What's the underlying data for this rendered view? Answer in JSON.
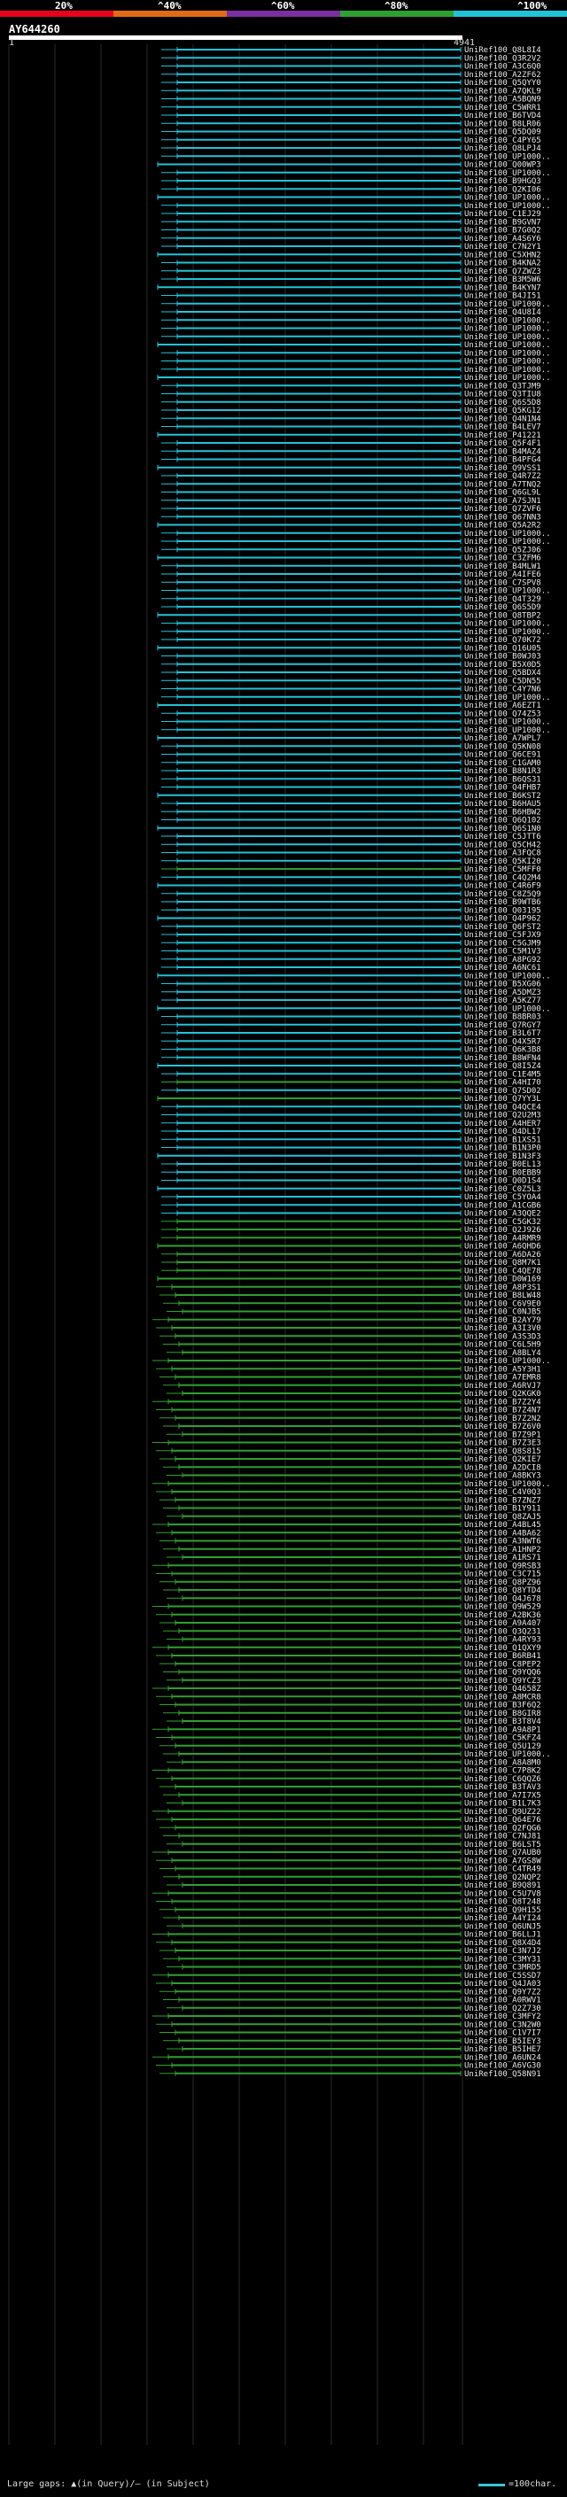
{
  "scale": {
    "labels": [
      "20%",
      "^40%",
      "^60%",
      "^80%",
      "^100%"
    ],
    "colors": [
      "#e8001c",
      "#e06a16",
      "#7a2fa0",
      "#2fa02f",
      "#22c3d9"
    ]
  },
  "query": {
    "name": "AY644260",
    "start_label": "1",
    "end_label": "4941"
  },
  "legend": {
    "gap_text": "Large gaps: ▲(in Query)/— (in Subject)",
    "scale_text": "=100char."
  },
  "hits": [
    "UniRef100_Q8L8I4",
    "UniRef100_Q3R2V2",
    "UniRef100_A3C6Q0",
    "UniRef100_A2ZF62",
    "UniRef100_Q5QYY0",
    "UniRef100_A7QKL9",
    "UniRef100_A5BQN9",
    "UniRef100_C5WRR1",
    "UniRef100_B6TVD4",
    "UniRef100_B8LR06",
    "UniRef100_Q5DQ09",
    "UniRef100_C4PY65",
    "UniRef100_Q8LPJ4",
    "UniRef100_UP1000..",
    "UniRef100_Q00WP3",
    "UniRef100_UP1000..",
    "UniRef100_B9HGQ3",
    "UniRef100_Q2KI06",
    "UniRef100_UP1000..",
    "UniRef100_UP1000..",
    "UniRef100_C1EJ29",
    "UniRef100_B9GVN7",
    "UniRef100_B7G0Q2",
    "UniRef100_A4S6Y6",
    "UniRef100_C7N2Y1",
    "UniRef100_C5XHN2",
    "UniRef100_B4KNA2",
    "UniRef100_Q7ZWZ3",
    "UniRef100_B3M5W6",
    "UniRef100_B4KYN7",
    "UniRef100_B4JI51",
    "UniRef100_UP1000..",
    "UniRef100_Q4U8I4",
    "UniRef100_UP1000..",
    "UniRef100_UP1000..",
    "UniRef100_UP1000..",
    "UniRef100_UP1000..",
    "UniRef100_UP1000..",
    "UniRef100_UP1000..",
    "UniRef100_UP1000..",
    "UniRef100_UP1000..",
    "UniRef100_Q3TJM9",
    "UniRef100_Q3TIU8",
    "UniRef100_Q6S5D8",
    "UniRef100_Q5KG12",
    "UniRef100_Q4N1N4",
    "UniRef100_B4LEV7",
    "UniRef100_P41221",
    "UniRef100_Q5F4F1",
    "UniRef100_B4MAZ4",
    "UniRef100_B4PFG4",
    "UniRef100_Q9VSS1",
    "UniRef100_Q4R7Z2",
    "UniRef100_A7TNQ2",
    "UniRef100_Q6GL9L",
    "UniRef100_A7SJN1",
    "UniRef100_Q7ZVF6",
    "UniRef100_Q67NN3",
    "UniRef100_Q5A2R2",
    "UniRef100_UP1000..",
    "UniRef100_UP1000..",
    "UniRef100_Q5ZJ06",
    "UniRef100_C3ZFM6",
    "UniRef100_B4MLW1",
    "UniRef100_A4IFE6",
    "UniRef100_C7SPV8",
    "UniRef100_UP1000..",
    "UniRef100_Q4T329",
    "UniRef100_Q6S5D9",
    "UniRef100_Q8TBP2",
    "UniRef100_UP1000..",
    "UniRef100_UP1000..",
    "UniRef100_Q70K72",
    "UniRef100_Q16U05",
    "UniRef100_B0WJ03",
    "UniRef100_B5X0D5",
    "UniRef100_Q5BDX4",
    "UniRef100_C5DN55",
    "UniRef100_C4Y7N6",
    "UniRef100_UP1000..",
    "UniRef100_A6EZT1",
    "UniRef100_Q74Z53",
    "UniRef100_UP1000..",
    "UniRef100_UP1000..",
    "UniRef100_A7WPL7",
    "UniRef100_Q5KN08",
    "UniRef100_Q6CE91",
    "UniRef100_C1GAM0",
    "UniRef100_B8N1R3",
    "UniRef100_B6QS31",
    "UniRef100_Q4FHB7",
    "UniRef100_B6KST2",
    "UniRef100_B6HAU5",
    "UniRef100_B6HBW2",
    "UniRef100_Q6Q102",
    "UniRef100_Q6S1N0",
    "UniRef100_C5JTT6",
    "UniRef100_Q5CH42",
    "UniRef100_A3FQC8",
    "UniRef100_Q5KI20",
    "UniRef100_C5MFF0",
    "UniRef100_C4Q2M4",
    "UniRef100_C4R6F9",
    "UniRef100_C8Z5Q9",
    "UniRef100_B9WTB6",
    "UniRef100_Q03195",
    "UniRef100_Q4P962",
    "UniRef100_Q6FST2",
    "UniRef100_C5FJX9",
    "UniRef100_C5GJM9",
    "UniRef100_C5M1V3",
    "UniRef100_A8PG92",
    "UniRef100_A6NC61",
    "UniRef100_UP1000..",
    "UniRef100_B5XG06",
    "UniRef100_A5DMZ3",
    "UniRef100_A5KZ77",
    "UniRef100_UP1000..",
    "UniRef100_B8BR03",
    "UniRef100_Q7RGY7",
    "UniRef100_B3L6T7",
    "UniRef100_Q4X5R7",
    "UniRef100_Q6K3B8",
    "UniRef100_B8WFN4",
    "UniRef100_Q8I5Z4",
    "UniRef100_C1E4M5",
    "UniRef100_A4HI70",
    "UniRef100_Q7SD02",
    "UniRef100_Q7YY3L",
    "UniRef100_Q4QCE4",
    "UniRef100_Q2U2M3",
    "UniRef100_A4HER7",
    "UniRef100_Q4DL17",
    "UniRef100_B1XS51",
    "UniRef100_B1N3P0",
    "UniRef100_B1N3F3",
    "UniRef100_B0EL13",
    "UniRef100_B0EBB9",
    "UniRef100_Q0D1S4",
    "UniRef100_C0Z5L3",
    "UniRef100_C5YOA4",
    "UniRef100_A1CGB6",
    "UniRef100_A3QQE2",
    "UniRef100_C5GK32",
    "UniRef100_Q2J926",
    "UniRef100_A4RMR9",
    "UniRef100_A6QHD6",
    "UniRef100_A6DA26",
    "UniRef100_Q8M7K1",
    "UniRef100_C4QE78",
    "UniRef100_D0W169",
    "UniRef100_A8P3S1",
    "UniRef100_B8LW48",
    "UniRef100_C6V9E0",
    "UniRef100_C0NJB5",
    "UniRef100_B2AY79",
    "UniRef100_A3I3V0",
    "UniRef100_A3S3D3",
    "UniRef100_C6L5H9",
    "UniRef100_A8BLY4",
    "UniRef100_UP1000..",
    "UniRef100_A5Y3H1",
    "UniRef100_A7EMR8",
    "UniRef100_A6RVJ7",
    "UniRef100_Q2KGK0",
    "UniRef100_B7Z2Y4",
    "UniRef100_B7Z4N7",
    "UniRef100_B7Z2N2",
    "UniRef100_B7Z6V0",
    "UniRef100_B7Z9P1",
    "UniRef100_B7Z3E3",
    "UniRef100_Q8S815",
    "UniRef100_Q2KIE7",
    "UniRef100_A2DCI8",
    "UniRef100_A8BKY3",
    "UniRef100_UP1000..",
    "UniRef100_C4V0Q3",
    "UniRef100_B7ZNZ7",
    "UniRef100_B1Y911",
    "UniRef100_Q8ZAJ5",
    "UniRef100_A4BL45",
    "UniRef100_A4BA62",
    "UniRef100_A3NWT6",
    "UniRef100_A1HNP2",
    "UniRef100_A1RS71",
    "UniRef100_Q9RSB3",
    "UniRef100_C3C715",
    "UniRef100_Q8PZ96",
    "UniRef100_Q8YTD4",
    "UniRef100_Q4J678",
    "UniRef100_Q9W529",
    "UniRef100_A2BK36",
    "UniRef100_A9A407",
    "UniRef100_Q3Q231",
    "UniRef100_A4RY93",
    "UniRef100_Q1QXY9",
    "UniRef100_B6RB41",
    "UniRef100_C8PEP2",
    "UniRef100_Q9YQQ6",
    "UniRef100_Q9YCZ3",
    "UniRef100_Q4658Z",
    "UniRef100_A8MCR8",
    "UniRef100_B3F6Q2",
    "UniRef100_B8GIR8",
    "UniRef100_B3T8V4",
    "UniRef100_A9A8P1",
    "UniRef100_C5KFZ4",
    "UniRef100_Q5U129",
    "UniRef100_UP1000..",
    "UniRef100_A8A8M0",
    "UniRef100_C7P8K2",
    "UniRef100_C6QQZ6",
    "UniRef100_B3TAV3",
    "UniRef100_A7I7X5",
    "UniRef100_B1L7K3",
    "UniRef100_Q9UZ22",
    "UniRef100_Q64E76",
    "UniRef100_Q2FQG6",
    "UniRef100_C7NJ81",
    "UniRef100_B6LST5",
    "UniRef100_Q7AUB0",
    "UniRef100_A7GS8W",
    "UniRef100_C4TR49",
    "UniRef100_Q2NQP2",
    "UniRef100_B9Q891",
    "UniRef100_C5U7V8",
    "UniRef100_Q8T248",
    "UniRef100_Q9H155",
    "UniRef100_A4YI24",
    "UniRef100_Q6UNJ5",
    "UniRef100_B6LLJ1",
    "UniRef100_Q8X4D4",
    "UniRef100_C3N7J2",
    "UniRef100_C3MY31",
    "UniRef100_C3MRD5",
    "UniRef100_C5SSD7",
    "UniRef100_Q4JA03",
    "UniRef100_Q9Y7Z2",
    "UniRef100_A0RWV1",
    "UniRef100_Q2Z730",
    "UniRef100_C3MFY2",
    "UniRef100_C3N2W0",
    "UniRef100_C1V7I7",
    "UniRef100_B5IEY3",
    "UniRef100_B5IHE7",
    "UniRef100_A6UN24",
    "UniRef100_A6VG30",
    "UniRef100_Q58N91"
  ]
}
